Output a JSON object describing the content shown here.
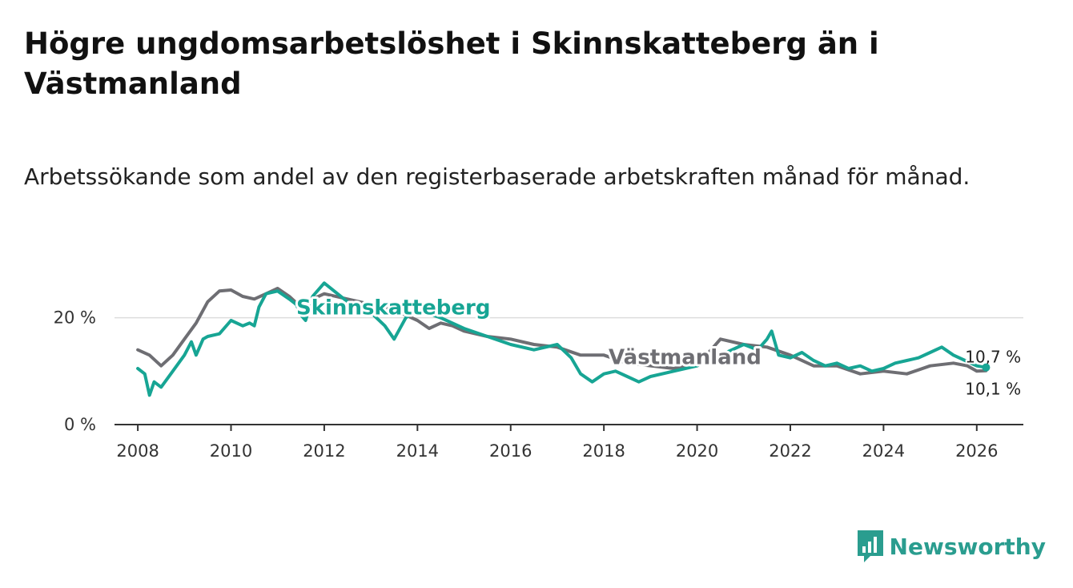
{
  "title": "Högre ungdomsarbetslöshet i Skinnskatteberg än i Västmanland",
  "subtitle": "Arbetssökande som andel av den registerbaserade arbetskraften månad för månad.",
  "brand": {
    "name": "Newsworthy",
    "color": "#2a9d8f",
    "icon": "bar-chart-logo-icon"
  },
  "chart_data": {
    "type": "line",
    "title": "Högre ungdomsarbetslöshet i Skinnskatteberg än i Västmanland",
    "xlabel": "",
    "ylabel": "",
    "xlim": [
      2007.5,
      2027.0
    ],
    "ylim": [
      0,
      27
    ],
    "grid": true,
    "x_ticks": [
      2008,
      2010,
      2012,
      2014,
      2016,
      2018,
      2020,
      2022,
      2024,
      2026
    ],
    "x_tick_labels": [
      "2008",
      "2010",
      "2012",
      "2014",
      "2016",
      "2018",
      "2020",
      "2022",
      "2024",
      "2026"
    ],
    "y_ticks": [
      0,
      20
    ],
    "y_tick_labels": [
      "0 %",
      "20 %"
    ],
    "series": [
      {
        "name": "Västmanland",
        "color": "#6e6e73",
        "end_label": "10,1 %",
        "x": [
          2008.0,
          2008.25,
          2008.5,
          2008.75,
          2009.0,
          2009.25,
          2009.5,
          2009.75,
          2010.0,
          2010.25,
          2010.5,
          2010.75,
          2011.0,
          2011.25,
          2011.5,
          2011.75,
          2012.0,
          2012.5,
          2013.0,
          2013.5,
          2014.0,
          2014.25,
          2014.5,
          2014.75,
          2015.0,
          2015.5,
          2016.0,
          2016.5,
          2017.0,
          2017.5,
          2018.0,
          2018.5,
          2019.0,
          2019.5,
          2020.0,
          2020.25,
          2020.5,
          2021.0,
          2021.5,
          2022.0,
          2022.5,
          2023.0,
          2023.5,
          2024.0,
          2024.5,
          2025.0,
          2025.5,
          2025.8,
          2026.0,
          2026.2
        ],
        "values": [
          14.0,
          13.0,
          11.0,
          13.0,
          16.0,
          19.0,
          23.0,
          25.0,
          25.2,
          24.0,
          23.5,
          24.5,
          25.5,
          24.0,
          22.0,
          23.5,
          24.5,
          23.5,
          22.5,
          21.5,
          19.5,
          18.0,
          19.0,
          18.5,
          17.5,
          16.5,
          16.0,
          15.0,
          14.5,
          13.0,
          13.0,
          11.5,
          11.0,
          10.5,
          11.5,
          13.5,
          16.0,
          15.0,
          14.5,
          13.0,
          11.0,
          11.0,
          9.5,
          10.0,
          9.5,
          11.0,
          11.5,
          11.0,
          10.0,
          10.1
        ]
      },
      {
        "name": "Skinnskatteberg",
        "color": "#17a594",
        "end_label": "10,7 %",
        "x": [
          2008.0,
          2008.15,
          2008.25,
          2008.35,
          2008.5,
          2008.75,
          2009.0,
          2009.15,
          2009.25,
          2009.4,
          2009.5,
          2009.75,
          2010.0,
          2010.25,
          2010.4,
          2010.5,
          2010.6,
          2010.75,
          2011.0,
          2011.25,
          2011.4,
          2011.5,
          2011.6,
          2011.75,
          2012.0,
          2012.5,
          2013.0,
          2013.3,
          2013.5,
          2013.75,
          2014.0,
          2014.5,
          2015.0,
          2015.5,
          2016.0,
          2016.5,
          2017.0,
          2017.3,
          2017.5,
          2017.75,
          2018.0,
          2018.25,
          2018.5,
          2018.75,
          2019.0,
          2019.5,
          2020.0,
          2020.5,
          2021.0,
          2021.3,
          2021.5,
          2021.6,
          2021.75,
          2022.0,
          2022.25,
          2022.5,
          2022.75,
          2023.0,
          2023.25,
          2023.5,
          2023.75,
          2024.0,
          2024.25,
          2024.5,
          2024.75,
          2025.0,
          2025.25,
          2025.5,
          2025.75,
          2026.0,
          2026.2
        ],
        "values": [
          10.5,
          9.5,
          5.5,
          8.0,
          7.0,
          10.0,
          13.0,
          15.5,
          13.0,
          16.0,
          16.5,
          17.0,
          19.5,
          18.5,
          19.0,
          18.5,
          22.0,
          24.5,
          25.0,
          23.5,
          22.5,
          20.5,
          19.5,
          24.0,
          26.5,
          23.0,
          21.0,
          18.5,
          16.0,
          20.0,
          21.5,
          20.0,
          18.0,
          16.5,
          15.0,
          14.0,
          15.0,
          12.5,
          9.5,
          8.0,
          9.5,
          10.0,
          9.0,
          8.0,
          9.0,
          10.0,
          11.0,
          13.0,
          15.0,
          14.0,
          16.0,
          17.5,
          13.0,
          12.5,
          13.5,
          12.0,
          11.0,
          11.5,
          10.5,
          11.0,
          10.0,
          10.5,
          11.5,
          12.0,
          12.5,
          13.5,
          14.5,
          13.0,
          12.0,
          11.0,
          10.7
        ]
      }
    ]
  }
}
